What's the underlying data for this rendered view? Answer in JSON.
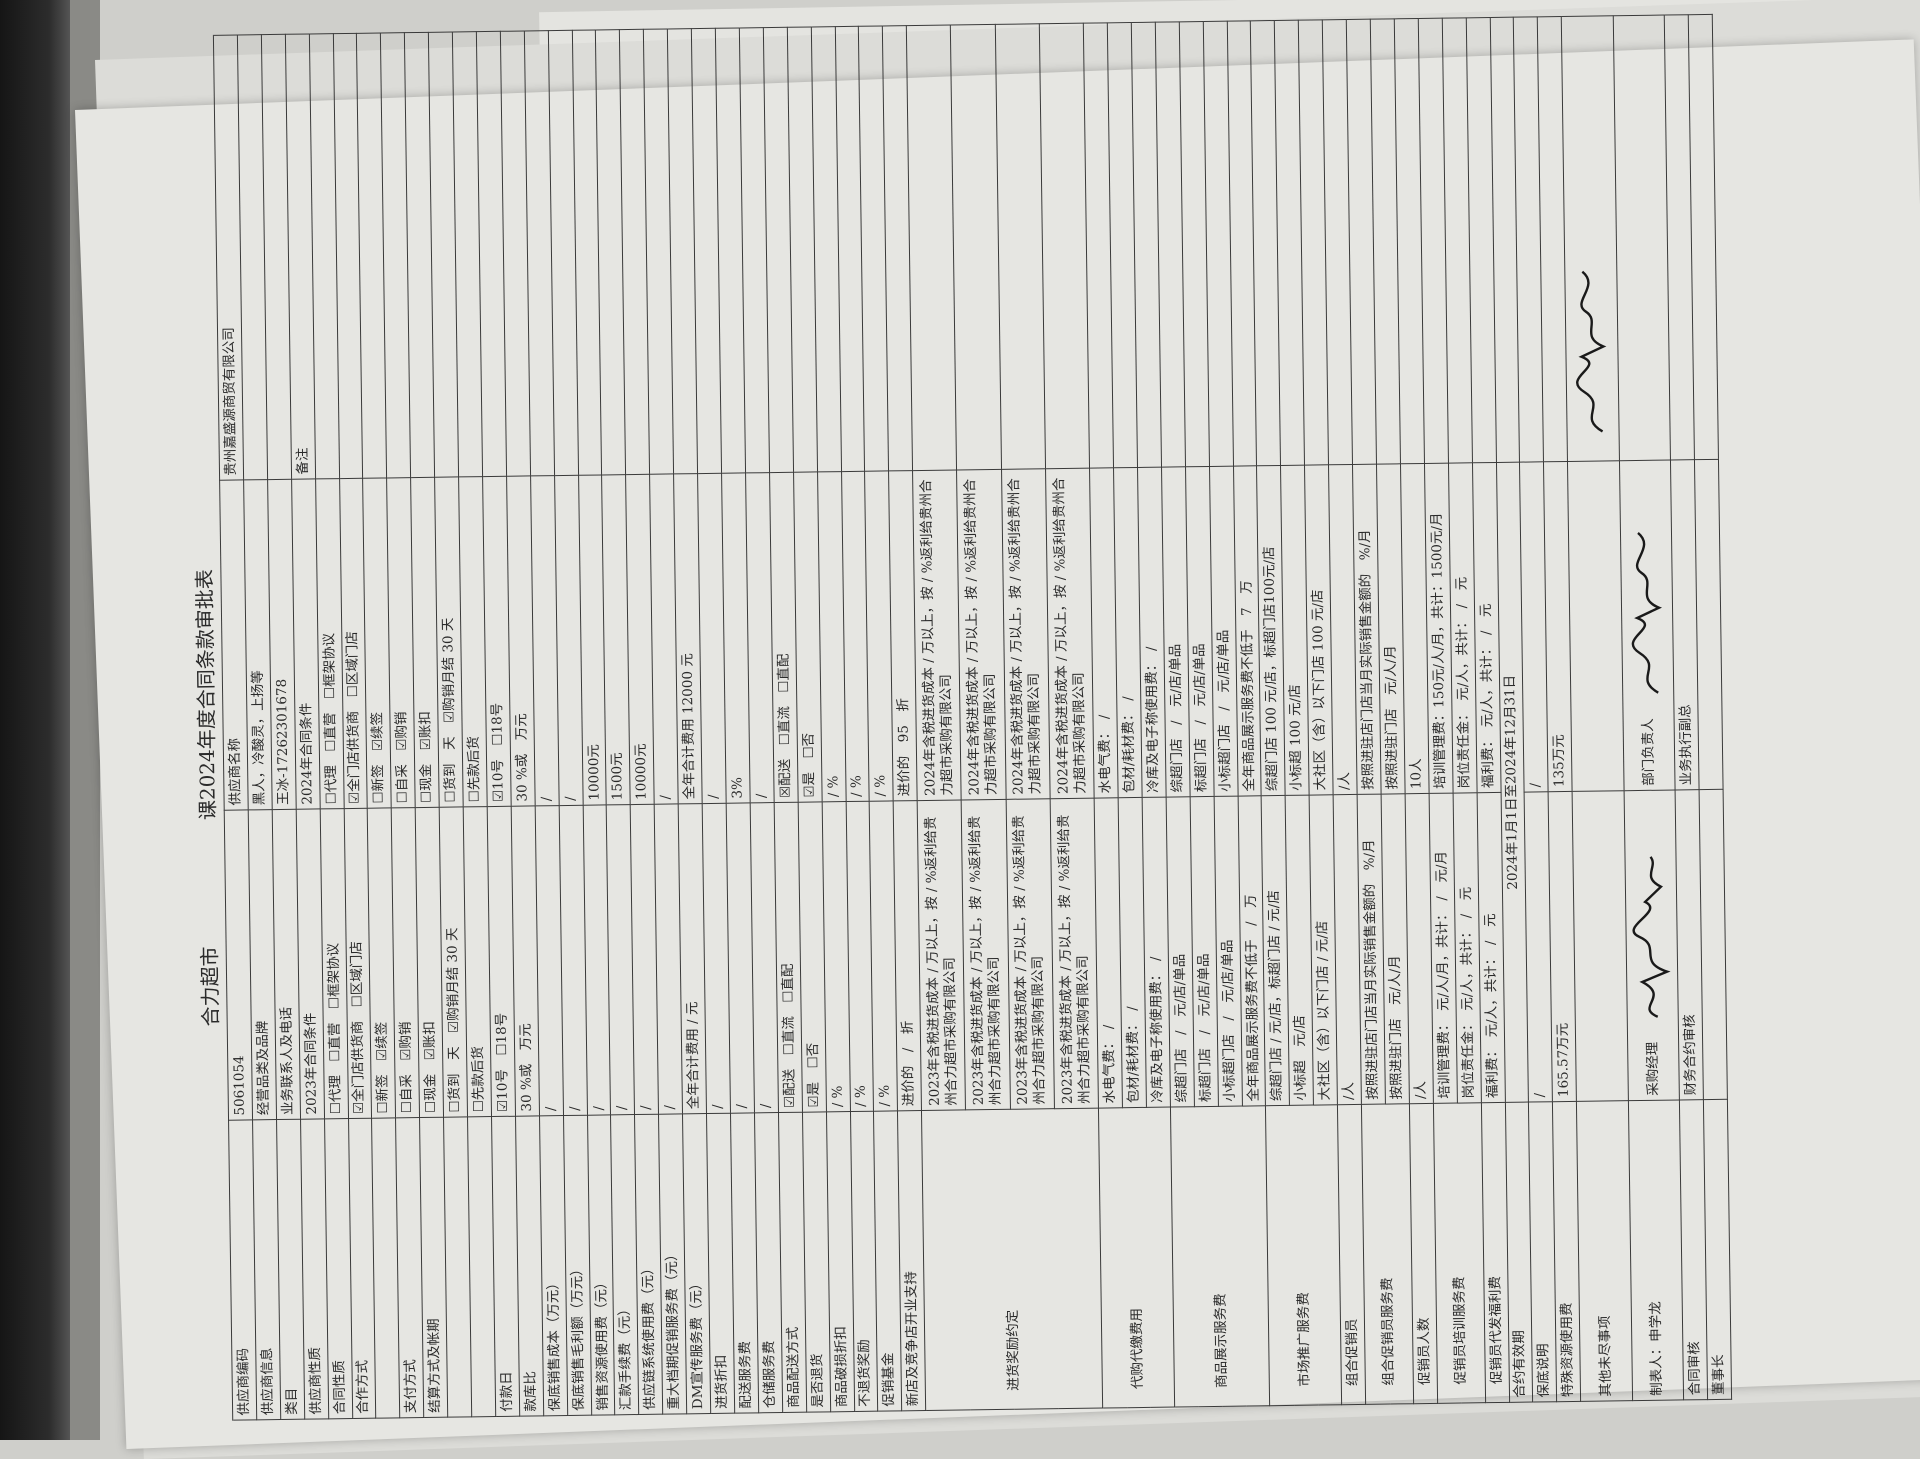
{
  "title": {
    "store": "合力超市",
    "form": "课2024年度合同条款审批表"
  },
  "colors": {
    "ink": "#2a2a2a",
    "paper": "#e6e6e2",
    "pen": "#1a1a1a",
    "pencil": "#9a9a9a"
  },
  "table": {
    "rows": [
      {
        "l": "供应商编码",
        "a": "5061054",
        "b": "供应商名称",
        "r": "贵州嘉盛源商贸有限公司"
      },
      {
        "l": "供应商信息",
        "a": "经营品类及品牌",
        "b": "黑人，冷酸灵，上扬等",
        "r": ""
      },
      {
        "l": "类目",
        "a": "业务联系人及电话",
        "b": "王冰-17262301678",
        "r": ""
      },
      {
        "l": "供应商性质",
        "a": "2023年合同条件",
        "b": "2024年合同条件",
        "r": "备注"
      },
      {
        "l": "合同性质",
        "a": "☐代理　☐直营　☐框架协议",
        "b": "☐代理　☐直营　☐框架协议",
        "r": ""
      },
      {
        "l": "合作方式",
        "a": "☑全门店供货商　☐区域门店",
        "b": "☑全门店供货商　☐区域门店",
        "r": ""
      },
      {
        "l": "",
        "a": "☐新签　☑续签",
        "b": "☐新签　☑续签",
        "r": ""
      },
      {
        "l": "支付方式",
        "a": "☐自采　☑购销",
        "b": "☐自采　☑购销",
        "r": ""
      },
      {
        "l": "结算方式及帐期",
        "a": "☐现金　☑账扣",
        "b": "☐现金　☑账扣",
        "r": ""
      },
      {
        "l": "",
        "a": "☐货到　天　☑购销月结 30 天",
        "b": "☐货到　天　☑购销月结 30 天",
        "r": ""
      },
      {
        "l": "",
        "a": "☐先款后货",
        "b": "☐先款后货",
        "r": ""
      },
      {
        "l": "付款日",
        "a": "☑10号　☐18号",
        "b": "☑10号　☐18号",
        "r": ""
      },
      {
        "l": "款库比",
        "a": "30 %或　万元",
        "b": "30 %或　万元",
        "r": ""
      },
      {
        "l": "保底销售成本（万元）",
        "a": "/",
        "b": "/",
        "r": ""
      },
      {
        "l": "保底销售毛利额（万元）",
        "a": "/",
        "b": "/",
        "r": ""
      },
      {
        "l": "销售资源使用费（元）",
        "a": "/",
        "b": "10000元",
        "r": ""
      },
      {
        "l": "汇款手续费（元）",
        "a": "/",
        "b": "1500元",
        "r": ""
      },
      {
        "l": "供应链系统使用费（元）",
        "a": "/",
        "b": "10000元",
        "r": ""
      },
      {
        "l": "重大档期促销服务费（元）",
        "a": "/",
        "b": "/",
        "r": ""
      },
      {
        "l": "DM宣传服务费（元）",
        "a": "全年合计费用 / 元",
        "b": "全年合计费用 12000 元",
        "r": ""
      },
      {
        "l": "进货折扣",
        "a": "/",
        "b": "/",
        "r": ""
      },
      {
        "l": "配送服务费",
        "a": "/",
        "b": "3%",
        "r": ""
      },
      {
        "l": "仓储服务费",
        "a": "/",
        "b": "/",
        "r": ""
      },
      {
        "l": "商品配送方式",
        "a": "☑配送　☐直流　☐直配",
        "b": "☒配送　☐直流　☐直配",
        "r": ""
      },
      {
        "l": "是否退货",
        "a": "☑是　☐否",
        "b": "☑是　☐否",
        "r": ""
      },
      {
        "l": "商品破损折扣",
        "a": "/ %",
        "b": "/ %",
        "r": ""
      },
      {
        "l": "不退货奖励",
        "a": "/ %",
        "b": "/ %",
        "r": ""
      },
      {
        "l": "促销基金",
        "a": "/ %",
        "b": "/ %",
        "r": ""
      },
      {
        "l": "新店及竞争店开业支持",
        "a": "进价的　/　折",
        "b": "进价的　95　折",
        "r": ""
      }
    ],
    "groups": [
      {
        "g": "进货奖励约定",
        "items": [
          {
            "a": "2023年含税进货成本 / 万以上，按 / %返利给贵州合力超市采购有限公司",
            "b": "2024年含税进货成本 / 万以上，按 / %返利给贵州合力超市采购有限公司"
          },
          {
            "a": "2023年含税进货成本 / 万以上，按 / %返利给贵州合力超市采购有限公司",
            "b": "2024年含税进货成本 / 万以上，按 / %返利给贵州合力超市采购有限公司"
          },
          {
            "a": "2023年含税进货成本 / 万以上，按 / %返利给贵州合力超市采购有限公司",
            "b": "2024年含税进货成本 / 万以上，按 / %返利给贵州合力超市采购有限公司"
          },
          {
            "a": "2023年含税进货成本 / 万以上，按 / %返利给贵州合力超市采购有限公司",
            "b": "2024年含税进货成本 / 万以上，按 / %返利给贵州合力超市采购有限公司"
          }
        ]
      },
      {
        "g": "代购代缴费用",
        "items": [
          {
            "a": "水电气费：　/",
            "b": "水电气费：　/"
          },
          {
            "a": "包材/耗材费：　/",
            "b": "包材/耗材费：　/"
          },
          {
            "a": "冷库及电子称使用费：　/",
            "b": "冷库及电子称使用费：　/"
          }
        ]
      },
      {
        "g": "商品展示服务费",
        "items": [
          {
            "a": "综超门店　/　元/店/单品",
            "b": "综超门店　/　元/店/单品"
          },
          {
            "a": "标超门店　/　元/店/单品",
            "b": "标超门店　/　元/店/单品"
          },
          {
            "a": "小标超门店　/　元/店/单品",
            "b": "小标超门店　/　元/店/单品"
          },
          {
            "a": "全年商品展示服务费不低于　/　万",
            "b": "全年商品展示服务费不低于　7　万"
          }
        ]
      },
      {
        "g": "市场推广服务费",
        "items": [
          {
            "a": "综超门店 / 元/店，标超门店 / 元/店",
            "b": "综超门店 100 元/店，标超门店100元/店"
          },
          {
            "a": "小标超　元/店",
            "b": "小标超 100 元/店"
          },
          {
            "a": "大社区（含）以下门店 / 元/店",
            "b": "大社区（含）以下门店 100 元/店"
          }
        ]
      },
      {
        "g": "组合促销员",
        "items": [
          {
            "a": "/人",
            "b": "/人"
          }
        ]
      },
      {
        "g": "组合促销员服务费",
        "items": [
          {
            "a": "按照进驻店门店当月实际销售金额的　%/月",
            "b": "按照进驻店门店当月实际销售金额的　%/月"
          },
          {
            "a": "按照进驻门店　元/人/月",
            "b": "按照进驻门店　元/人/月"
          }
        ]
      },
      {
        "g": "促销员人数",
        "items": [
          {
            "a": "/人",
            "b": "10人"
          }
        ]
      },
      {
        "g": "促销员培训服务费",
        "items": [
          {
            "a": "培训管理费：　元/人/月，共计：　/　元/月",
            "b": "培训管理费：150元/人/月，共计：1500元/月"
          },
          {
            "a": "岗位责任金：　元/人，共计：　/　元",
            "b": "岗位责任金：　元/人，共计：　/　元"
          }
        ]
      },
      {
        "g": "促销员代发福利费",
        "items": [
          {
            "a": "福利费：　元/人，共计：　/　元",
            "b": "福利费：　元/人，共计：　/　元"
          }
        ]
      }
    ],
    "footer": [
      {
        "l": "合约有效期",
        "ab": "2024年1月1日至2024年12月31日"
      },
      {
        "l": "保底说明",
        "a": "/",
        "b": "/"
      },
      {
        "l": "特殊资源使用费",
        "a": "165.57万元",
        "b": "135万元"
      },
      {
        "l": "其他未尽事项",
        "a": "",
        "b": ""
      },
      {
        "l": "制表人：申学龙",
        "a": "采购经理",
        "b": "部门负责人",
        "sigA": true,
        "sigB": true
      },
      {
        "l": "合同审核",
        "a": "财务合约审核",
        "b": "业务执行副总"
      },
      {
        "l": "董事长",
        "a": "",
        "b": ""
      }
    ]
  }
}
